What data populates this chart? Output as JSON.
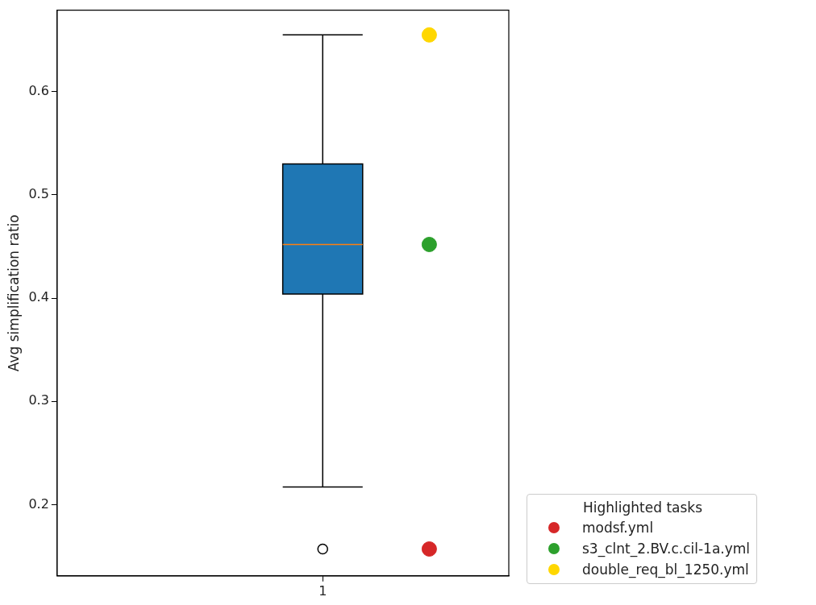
{
  "chart_data": {
    "type": "box",
    "ylabel": "Avg simplification ratio",
    "legend_title": "Highlighted tasks",
    "categories": [
      "1"
    ],
    "color": "#1f77b4",
    "boxes": [
      {
        "low": 0.217,
        "q1": 0.404,
        "median": 0.452,
        "q3": 0.53,
        "high": 0.655,
        "outliers": [
          0.157
        ]
      }
    ],
    "series": [
      {
        "type": "scatter",
        "name": "modsf.yml",
        "color": "#d62728",
        "x": [
          "1"
        ],
        "values": [
          0.157
        ]
      },
      {
        "type": "scatter",
        "name": "s3_clnt_2.BV.c.cil-1a.yml",
        "color": "#2ca02c",
        "x": [
          "1"
        ],
        "values": [
          0.452
        ]
      },
      {
        "type": "scatter",
        "name": "double_req_bl_1250.yml",
        "color": "#ffd700",
        "x": [
          "1"
        ],
        "values": [
          0.655
        ]
      }
    ],
    "ylim": [
      0.131,
      0.679
    ],
    "yticks": [
      0.2,
      0.3,
      0.4,
      0.5,
      0.6
    ],
    "grid": false,
    "legend": "bottom right",
    "marker": "circle"
  }
}
